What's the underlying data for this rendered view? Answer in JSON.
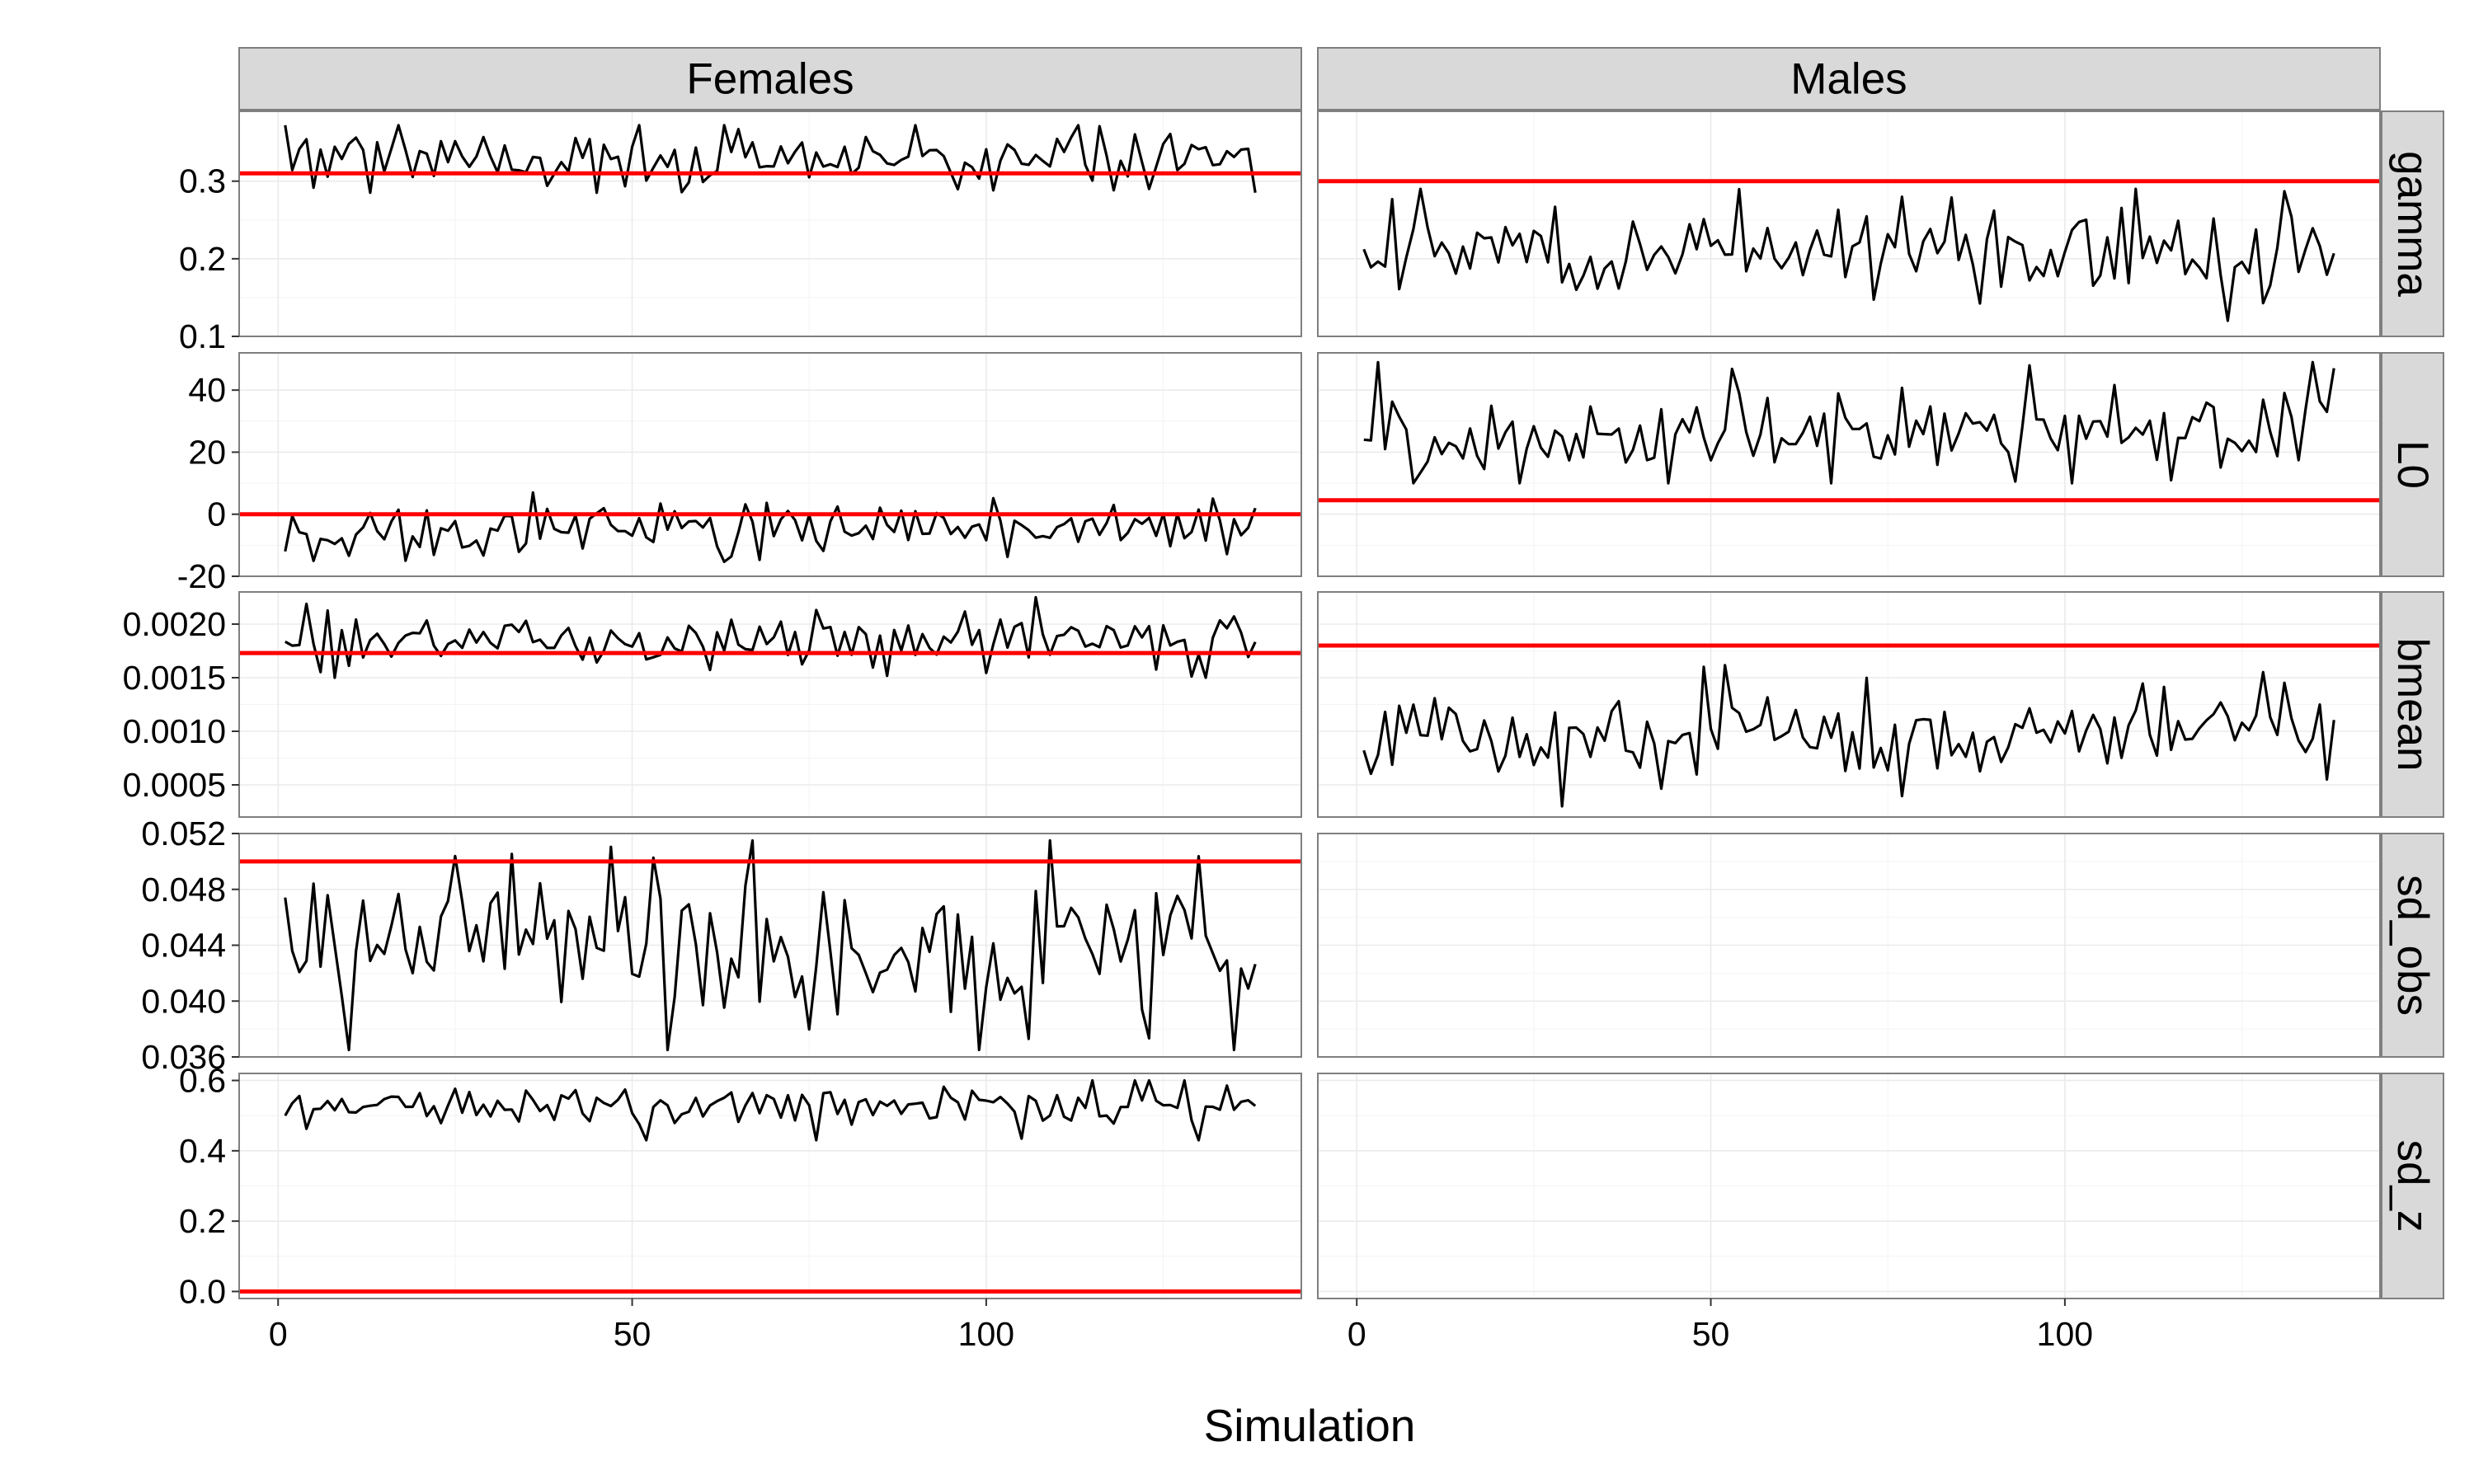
{
  "chart_data": {
    "type": "line",
    "title": "",
    "xlabel": "Simulation",
    "ylabel": "",
    "facet_columns": [
      "Females",
      "Males"
    ],
    "facet_rows": [
      "gamma",
      "L0",
      "bmean",
      "sd_obs",
      "sd_z"
    ],
    "x_range": [
      1,
      138
    ],
    "xlim": [
      -5.5,
      144.5
    ],
    "x_ticks": [
      0,
      50,
      100
    ],
    "x_tick_labels": [
      "0",
      "50",
      "100"
    ],
    "reference_color": "#ff0000",
    "line_color": "#000000",
    "grid": true,
    "rows": [
      {
        "name": "gamma",
        "ylim": [
          0.1,
          0.39
        ],
        "y_ticks": [
          0.1,
          0.2,
          0.3
        ],
        "y_tick_labels": [
          "0.1",
          "0.2",
          "0.3"
        ],
        "panels": [
          {
            "column": "Females",
            "reference": 0.31,
            "mean": 0.33,
            "amp": 0.02,
            "min": 0.285,
            "max": 0.372
          },
          {
            "column": "Males",
            "reference": 0.3,
            "mean": 0.21,
            "amp": 0.03,
            "min": 0.11,
            "max": 0.29
          }
        ]
      },
      {
        "name": "L0",
        "ylim": [
          -20,
          52
        ],
        "y_ticks": [
          -20,
          0,
          20,
          40
        ],
        "y_tick_labels": [
          "-20",
          "0",
          "20",
          "40"
        ],
        "panels": [
          {
            "column": "Females",
            "reference": 0,
            "mean": -5,
            "amp": 4.5,
            "min": -18,
            "max": 7
          },
          {
            "column": "Males",
            "reference": 4.5,
            "mean": 26,
            "amp": 7,
            "min": 10,
            "max": 49
          }
        ]
      },
      {
        "name": "bmean",
        "ylim": [
          0.0002,
          0.0023
        ],
        "y_ticks": [
          0.0005,
          0.001,
          0.0015,
          0.002
        ],
        "y_tick_labels": [
          "0.0005",
          "0.0010",
          "0.0015",
          "0.0020"
        ],
        "panels": [
          {
            "column": "Females",
            "reference": 0.00173,
            "mean": 0.00185,
            "amp": 0.00012,
            "min": 0.0015,
            "max": 0.00225
          },
          {
            "column": "Males",
            "reference": 0.0018,
            "mean": 0.00095,
            "amp": 0.0002,
            "min": 0.0003,
            "max": 0.00175
          }
        ]
      },
      {
        "name": "sd_obs",
        "ylim": [
          0.036,
          0.052
        ],
        "y_ticks": [
          0.036,
          0.04,
          0.044,
          0.048,
          0.052
        ],
        "y_tick_labels": [
          "0.036",
          "0.040",
          "0.044",
          "0.048",
          "0.052"
        ],
        "panels": [
          {
            "column": "Females",
            "reference": 0.05,
            "mean": 0.0437,
            "amp": 0.0028,
            "min": 0.0365,
            "max": 0.0515
          },
          {
            "column": "Males",
            "empty": true
          }
        ]
      },
      {
        "name": "sd_z",
        "ylim": [
          -0.02,
          0.62
        ],
        "y_ticks": [
          0,
          0.2,
          0.4,
          0.6
        ],
        "y_tick_labels": [
          "0.0",
          "0.2",
          "0.4",
          "0.6"
        ],
        "panels": [
          {
            "column": "Females",
            "reference": 0,
            "mean": 0.525,
            "amp": 0.03,
            "min": 0.43,
            "max": 0.6
          },
          {
            "column": "Males",
            "empty": true
          }
        ]
      }
    ]
  }
}
